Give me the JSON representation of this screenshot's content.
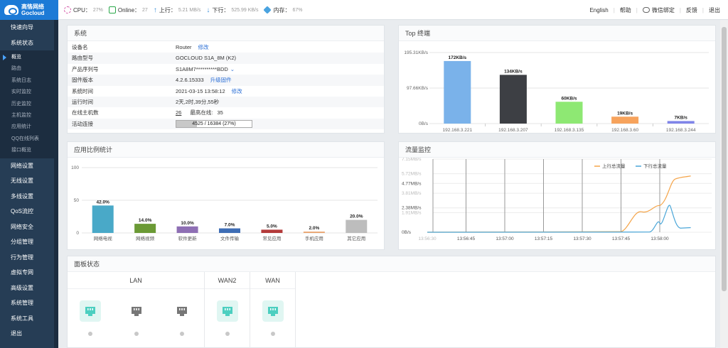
{
  "app": {
    "logo_cn": "高恪网络",
    "logo_en": "Gocloud"
  },
  "topbar": {
    "cpu_label": "CPU：",
    "cpu_value": "27%",
    "online_label": "Online：",
    "online_value": "27",
    "up_label": "上行：",
    "up_value": "5.21 MB/s",
    "down_label": "下行：",
    "down_value": "525.99 KB/s",
    "mem_label": "内存：",
    "mem_value": "67%",
    "links": [
      "English",
      "帮助",
      "微信绑定",
      "反馈",
      "退出"
    ]
  },
  "sidebar": {
    "top_items": [
      "快速向导",
      "系统状态"
    ],
    "sub_items": [
      "概览",
      "路由",
      "系统日志",
      "实时监控",
      "历史监控",
      "主机监控",
      "应用统计",
      "QQ在线列表",
      "接口概览"
    ],
    "active_sub": 0,
    "bottom_items": [
      "网络设置",
      "无线设置",
      "多线设置",
      "QoS流控",
      "网络安全",
      "分组管理",
      "行为管理",
      "虚拟专网",
      "高级设置",
      "系统管理",
      "系统工具",
      "退出"
    ]
  },
  "system": {
    "title": "系统",
    "rows": [
      {
        "label": "设备名",
        "value": "Router",
        "link": "修改"
      },
      {
        "label": "路由型号",
        "value": "GOCLOUD S1A_8M (K2)",
        "link": ""
      },
      {
        "label": "产品序列号",
        "value": "S1A8M7**********BDD",
        "link": ""
      },
      {
        "label": "固件版本",
        "value": "4.2.6.15333",
        "link": "升级固件"
      },
      {
        "label": "系统时间",
        "value": "2021-03-15 13:58:12",
        "link": "修改"
      },
      {
        "label": "运行时间",
        "value": "2天,2时,39分,55秒",
        "link": ""
      },
      {
        "label": "在线主机数",
        "value": "26",
        "extra_label": "最高在线:",
        "extra_value": "35",
        "link": ""
      }
    ],
    "connections": {
      "label": "活动连接",
      "text": "4525 / 16384 (27%)",
      "fraction": 0.27
    }
  },
  "top_terminals": {
    "title": "Top 终端",
    "chart_data": {
      "type": "bar",
      "categories": [
        "192.168.3.221",
        "192.168.3.207",
        "192.168.3.135",
        "192.168.3.60",
        "192.168.3.244"
      ],
      "values": [
        172,
        134,
        60,
        19,
        7
      ],
      "data_labels": [
        "172KB/s",
        "134KB/s",
        "60KB/s",
        "19KB/s",
        "7KB/s"
      ],
      "colors": [
        "#7ab2ea",
        "#3d3f44",
        "#8ee873",
        "#f7a35c",
        "#8085e9"
      ],
      "yticks": [
        "195.31KB/s",
        "97.66KB/s",
        "0B/s"
      ],
      "ylim": [
        0,
        195.31
      ],
      "grid": true
    }
  },
  "app_ratio": {
    "title": "应用比例统计",
    "chart_data": {
      "type": "bar",
      "categories": [
        "网络电视",
        "网络视频",
        "软件更新",
        "文件传输",
        "常见应用",
        "手机应用",
        "其它应用"
      ],
      "values": [
        42.0,
        14.0,
        10.0,
        7.0,
        5.0,
        2.0,
        20.0
      ],
      "data_labels": [
        "42.0%",
        "14.0%",
        "10.0%",
        "7.0%",
        "5.0%",
        "2.0%",
        "20.0%"
      ],
      "colors": [
        "#49a9c8",
        "#6b9a35",
        "#8e6fb4",
        "#3e6db5",
        "#b33a3a",
        "#e9a36e",
        "#bdbdbd"
      ],
      "yticks": [
        "100",
        "50",
        "0"
      ],
      "ylim": [
        0,
        100
      ],
      "grid": true
    }
  },
  "traffic": {
    "title": "流量监控",
    "chart_data": {
      "type": "line",
      "x": [
        "13:56:30",
        "13:56:45",
        "13:57:00",
        "13:57:15",
        "13:57:30",
        "13:57:45",
        "13:58:00",
        "13:58:12"
      ],
      "xticks": [
        "13:56:30",
        "13:56:45",
        "13:57:00",
        "13:57:15",
        "13:57:30",
        "13:57:45",
        "13:58:00"
      ],
      "yticks": [
        "7.15MB/s",
        "5.72MB/s",
        "4.77MB/s",
        "3.81MB/s",
        "2.38MB/s",
        "1.91MB/s",
        "0B/s"
      ],
      "ylim": [
        0,
        7.15
      ],
      "series": [
        {
          "name": "上行总流量",
          "color": "#f5a54a",
          "values": [
            0,
            0,
            0,
            0,
            0,
            0.05,
            3.0,
            5.5
          ]
        },
        {
          "name": "下行总流量",
          "color": "#4aa6d8",
          "values": [
            0,
            0,
            0,
            0,
            0,
            0,
            0.7,
            0.4
          ]
        }
      ],
      "legend": "top-right",
      "grid": true
    }
  },
  "panel_status": {
    "title": "面板状态",
    "groups": [
      {
        "name": "LAN",
        "ports": [
          true,
          false,
          false
        ]
      },
      {
        "name": "WAN2",
        "ports": [
          true
        ]
      },
      {
        "name": "WAN",
        "ports": [
          true
        ]
      }
    ],
    "colors": {
      "on": "#4ccfc0",
      "off": "#777777"
    }
  }
}
